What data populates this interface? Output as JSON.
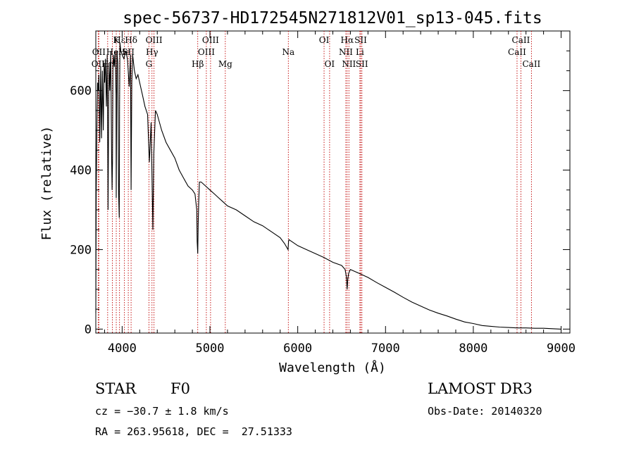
{
  "chart_data": {
    "type": "line",
    "title": "spec-56737-HD172545N271812V01_sp13-045.fits",
    "xlabel": "Wavelength (Å)",
    "ylabel": "Flux (relative)",
    "xlim": [
      3700,
      9100
    ],
    "ylim": [
      -10,
      750
    ],
    "xticks": [
      4000,
      5000,
      6000,
      7000,
      8000,
      9000
    ],
    "yticks": [
      0,
      200,
      400,
      600
    ],
    "series": [
      {
        "name": "flux",
        "x": [
          3700,
          3705,
          3712,
          3720,
          3728,
          3735,
          3745,
          3755,
          3765,
          3775,
          3785,
          3795,
          3800,
          3810,
          3820,
          3830,
          3840,
          3850,
          3860,
          3870,
          3880,
          3885,
          3890,
          3895,
          3900,
          3910,
          3920,
          3930,
          3933,
          3936,
          3940,
          3950,
          3960,
          3967,
          3970,
          3975,
          3985,
          4000,
          4020,
          4040,
          4060,
          4080,
          4095,
          4102,
          4110,
          4120,
          4140,
          4160,
          4180,
          4200,
          4230,
          4260,
          4290,
          4310,
          4330,
          4340,
          4350,
          4360,
          4380,
          4400,
          4450,
          4500,
          4550,
          4600,
          4650,
          4700,
          4750,
          4800,
          4830,
          4850,
          4855,
          4861,
          4866,
          4872,
          4880,
          4900,
          4950,
          5000,
          5050,
          5100,
          5150,
          5200,
          5300,
          5400,
          5500,
          5600,
          5700,
          5800,
          5850,
          5890,
          5895,
          5900,
          6000,
          6100,
          6200,
          6300,
          6400,
          6500,
          6540,
          6555,
          6563,
          6570,
          6580,
          6600,
          6650,
          6700,
          6800,
          6900,
          7000,
          7100,
          7200,
          7300,
          7400,
          7500,
          7600,
          7700,
          7800,
          7900,
          8000,
          8100,
          8200,
          8300,
          8400,
          8500,
          8600,
          8700,
          8800,
          8900,
          9000
        ],
        "y": [
          40,
          350,
          500,
          620,
          600,
          640,
          470,
          660,
          480,
          650,
          500,
          670,
          620,
          680,
          560,
          690,
          300,
          670,
          600,
          700,
          440,
          350,
          420,
          650,
          690,
          660,
          700,
          590,
          330,
          480,
          700,
          670,
          340,
          280,
          560,
          720,
          700,
          690,
          680,
          700,
          680,
          610,
          690,
          350,
          620,
          690,
          650,
          630,
          640,
          620,
          590,
          560,
          540,
          420,
          520,
          380,
          250,
          440,
          550,
          540,
          500,
          470,
          450,
          430,
          400,
          380,
          360,
          350,
          340,
          300,
          220,
          190,
          260,
          320,
          370,
          370,
          360,
          350,
          340,
          330,
          320,
          310,
          300,
          285,
          270,
          260,
          245,
          230,
          215,
          200,
          220,
          225,
          210,
          200,
          190,
          180,
          168,
          160,
          150,
          130,
          100,
          125,
          140,
          150,
          145,
          140,
          130,
          117,
          105,
          93,
          80,
          68,
          58,
          48,
          40,
          33,
          25,
          18,
          14,
          9,
          7,
          5,
          4,
          3,
          3,
          2,
          2,
          1,
          0
        ]
      }
    ],
    "lines": [
      {
        "label": "Hε",
        "x": 3970,
        "row": 0
      },
      {
        "label": "OII",
        "x": 3727,
        "row": 2
      },
      {
        "label": "He",
        "x": 3889,
        "row": 1
      },
      {
        "label": "K",
        "x": 3933,
        "row": 0
      },
      {
        "label": "Hδ",
        "x": 4102,
        "row": 0
      },
      {
        "label": "He",
        "x": 4026,
        "row": 1
      },
      {
        "label": "OII",
        "x": 3735,
        "row": 1
      },
      {
        "label": "Hη",
        "x": 3835,
        "row": 2
      },
      {
        "label": "SII",
        "x": 4070,
        "row": 1
      },
      {
        "label": "OIII",
        "x": 4363,
        "row": 0
      },
      {
        "label": "Hγ",
        "x": 4340,
        "row": 1
      },
      {
        "label": "G",
        "x": 4305,
        "row": 2
      },
      {
        "label": "Hβ",
        "x": 4861,
        "row": 2
      },
      {
        "label": "OIII",
        "x": 5007,
        "row": 0
      },
      {
        "label": "OIII",
        "x": 4959,
        "row": 1
      },
      {
        "label": "Mg",
        "x": 5175,
        "row": 2
      },
      {
        "label": "Na",
        "x": 5893,
        "row": 1
      },
      {
        "label": "OI",
        "x": 6300,
        "row": 0
      },
      {
        "label": "OI",
        "x": 6363,
        "row": 2
      },
      {
        "label": "Hα",
        "x": 6563,
        "row": 0
      },
      {
        "label": "NII",
        "x": 6548,
        "row": 1
      },
      {
        "label": "NII",
        "x": 6583,
        "row": 2
      },
      {
        "label": "SII",
        "x": 6717,
        "row": 0
      },
      {
        "label": "Li",
        "x": 6708,
        "row": 1
      },
      {
        "label": "SII",
        "x": 6731,
        "row": 2
      },
      {
        "label": "CaII",
        "x": 8542,
        "row": 0
      },
      {
        "label": "CaII",
        "x": 8498,
        "row": 1
      },
      {
        "label": "CaII",
        "x": 8662,
        "row": 2
      }
    ]
  },
  "info": {
    "object_type": "STAR",
    "subclass": "F0",
    "cz": "cz = −30.7 ± 1.8 km/s",
    "coords": "RA = 263.95618, DEC =  27.51333",
    "survey": "LAMOST DR3",
    "obs_date": "Obs-Date: 20140320"
  }
}
